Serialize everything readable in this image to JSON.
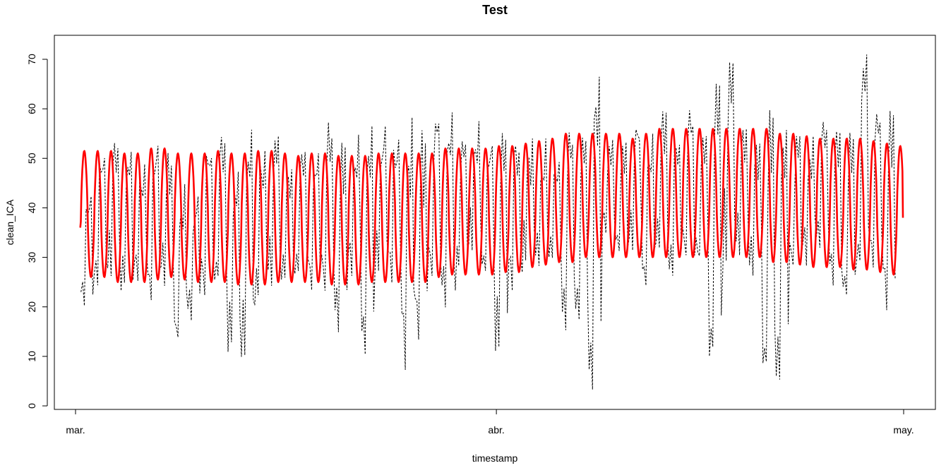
{
  "chart_data": {
    "type": "line",
    "title": "Test",
    "xlabel": "timestamp",
    "ylabel": "clean_ICA",
    "x_ticks": [
      "mar.",
      "abr.",
      "may."
    ],
    "x_range": [
      "2020-03-01",
      "2020-05-01"
    ],
    "ylim": [
      0,
      73
    ],
    "y_ticks": [
      0,
      10,
      20,
      30,
      40,
      50,
      60,
      70
    ],
    "grid": false,
    "legend": "none",
    "series": [
      {
        "style": "dashed",
        "color": "#000000",
        "x": [
          "2020-03-01",
          "2020-03-02",
          "2020-03-03",
          "2020-03-04",
          "2020-03-05",
          "2020-03-06",
          "2020-03-07",
          "2020-03-08",
          "2020-03-09",
          "2020-03-10",
          "2020-03-11",
          "2020-03-12",
          "2020-03-13",
          "2020-03-14",
          "2020-03-15",
          "2020-03-16",
          "2020-03-17",
          "2020-03-18",
          "2020-03-19",
          "2020-03-20",
          "2020-03-21",
          "2020-03-22",
          "2020-03-23",
          "2020-03-24",
          "2020-03-25",
          "2020-03-26",
          "2020-03-27",
          "2020-03-28",
          "2020-03-29",
          "2020-03-30",
          "2020-03-31",
          "2020-04-01",
          "2020-04-02",
          "2020-04-03",
          "2020-04-04",
          "2020-04-05",
          "2020-04-06",
          "2020-04-07",
          "2020-04-08",
          "2020-04-09",
          "2020-04-10",
          "2020-04-11",
          "2020-04-12",
          "2020-04-13",
          "2020-04-14",
          "2020-04-15",
          "2020-04-16",
          "2020-04-17",
          "2020-04-18",
          "2020-04-19",
          "2020-04-20",
          "2020-04-21",
          "2020-04-22",
          "2020-04-23",
          "2020-04-24",
          "2020-04-25",
          "2020-04-26",
          "2020-04-27",
          "2020-04-28",
          "2020-04-29",
          "2020-04-30",
          "2020-05-01"
        ],
        "values_low": [
          20,
          24,
          26,
          22,
          23,
          20,
          24,
          12,
          17,
          21,
          24,
          10,
          10,
          22,
          24,
          23,
          25,
          22,
          23,
          13,
          26,
          9,
          25,
          22,
          7,
          13,
          26,
          17,
          26,
          30,
          27,
          10,
          23,
          28,
          26,
          27,
          15,
          17,
          3,
          32,
          29,
          30,
          24,
          30,
          26,
          29,
          28,
          9,
          29,
          30,
          26,
          6,
          3,
          27,
          28,
          30,
          24,
          21,
          27,
          25,
          19,
          26
        ],
        "values_high": [
          43,
          53,
          54,
          52,
          51,
          53,
          50,
          47,
          45,
          53,
          56,
          50,
          58,
          53,
          55,
          50,
          52,
          53,
          57,
          53,
          56,
          58,
          58,
          55,
          59,
          56,
          59,
          60,
          55,
          58,
          54,
          56,
          54,
          54,
          54,
          52,
          55,
          55,
          67,
          56,
          54,
          56,
          55,
          60,
          54,
          58,
          56,
          66,
          70,
          56,
          55,
          59,
          58,
          55,
          56,
          58,
          58,
          54,
          71,
          60,
          61,
          58
        ]
      },
      {
        "style": "solid",
        "color": "#ff0000",
        "period_days": 1,
        "first_value": 36,
        "last_value": 38,
        "daily_max": [
          51.5,
          51.5,
          51.5,
          51,
          51,
          52,
          52,
          51,
          51,
          51,
          51.5,
          51,
          51,
          51.5,
          51.5,
          51,
          50.5,
          51,
          51,
          50.5,
          50.5,
          50.5,
          51,
          51,
          51,
          51,
          51,
          52,
          52,
          52,
          52,
          52.5,
          52.5,
          53,
          53.5,
          54,
          55,
          55,
          55,
          55,
          55,
          54,
          55,
          56,
          56,
          56,
          56,
          56,
          56,
          56,
          56,
          56,
          55,
          55,
          54.5,
          54,
          54,
          54,
          54,
          53.5,
          53,
          52.5
        ],
        "daily_min": [
          26,
          26,
          25,
          25,
          25,
          25.5,
          26,
          25.5,
          25,
          25,
          25,
          24.5,
          24.5,
          24.5,
          25,
          25,
          25,
          25,
          24.5,
          24.5,
          24.5,
          25,
          25,
          25,
          25,
          25,
          26,
          26.5,
          26.5,
          26.5,
          26.5,
          27,
          27,
          28,
          28.5,
          29,
          29,
          30,
          30,
          30,
          30,
          30,
          30,
          30,
          30,
          30,
          30,
          30,
          30,
          30,
          30,
          29,
          29,
          28.5,
          28,
          28,
          28,
          27.5,
          27.5,
          27,
          26.5,
          26.5
        ]
      }
    ]
  }
}
